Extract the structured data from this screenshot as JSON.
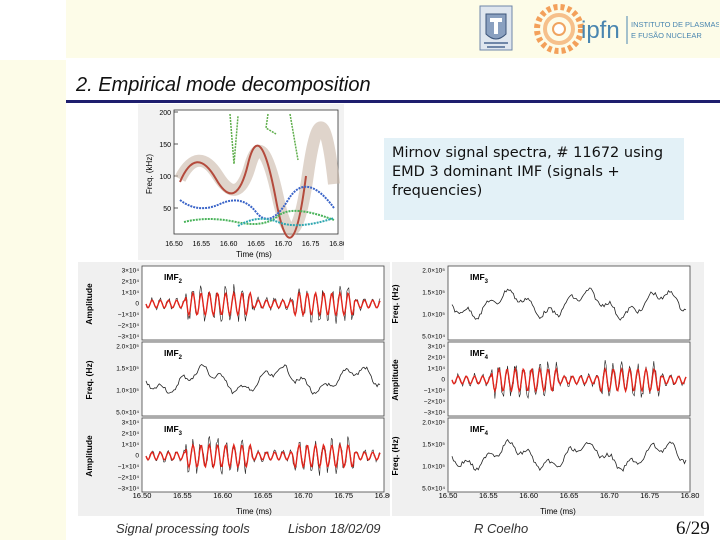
{
  "slide": {
    "title": "2. Empirical mode decomposition",
    "caption": "Mirnov signal spectra, # 11672 using EMD 3 dominant IMF (signals + frequencies)",
    "page_number": "6/29"
  },
  "footer": {
    "left": "Signal processing tools",
    "center": "Lisbon 18/02/09",
    "right": "R Coelho"
  },
  "logos": {
    "ist_name": "ist-logo",
    "ipfn_text": "ipfn",
    "ipfn_subtitle_1": "INSTITUTO DE PLASMAS",
    "ipfn_subtitle_2": "E FUSÃO NUCLEAR"
  },
  "spectrogram": {
    "ylabel": "Freq. (kHz)",
    "xlabel": "Time (ms)",
    "yticks": [
      "200",
      "150",
      "100",
      "50"
    ],
    "xticks": [
      "16.50",
      "16.55",
      "16.60",
      "16.65",
      "16.70",
      "16.75",
      "16.80"
    ]
  },
  "left_panels": {
    "xlabel": "Time (ms)",
    "xticks": [
      "16.50",
      "16.55",
      "16.60",
      "16.65",
      "16.70",
      "16.75",
      "16.80"
    ],
    "panels": [
      {
        "label": "IMF",
        "sub": "2",
        "ylabel": "Amplitude",
        "yticks": [
          "3×10⁴",
          "2×10⁴",
          "1×10⁴",
          "0",
          "−1×10⁴",
          "−2×10⁴",
          "−3×10⁴"
        ]
      },
      {
        "label": "IMF",
        "sub": "2",
        "ylabel": "Freq. (Hz)",
        "yticks": [
          "2.0×10⁵",
          "1.5×10⁵",
          "1.0×10⁵",
          "5.0×10⁴"
        ]
      },
      {
        "label": "IMF",
        "sub": "3",
        "ylabel": "Amplitude",
        "yticks": [
          "3×10⁴",
          "2×10⁴",
          "1×10⁴",
          "0",
          "−1×10⁴",
          "−2×10⁴",
          "−3×10⁴"
        ]
      }
    ]
  },
  "right_panels": {
    "xlabel": "Time (ms)",
    "xticks": [
      "16.50",
      "16.55",
      "16.60",
      "16.65",
      "16.70",
      "16.75",
      "16.80"
    ],
    "panels": [
      {
        "label": "IMF",
        "sub": "3",
        "ylabel": "Freq. (Hz)",
        "yticks": [
          "2.0×10⁵",
          "1.5×10⁵",
          "1.0×10⁵",
          "5.0×10⁴"
        ]
      },
      {
        "label": "IMF",
        "sub": "4",
        "ylabel": "Amplitude",
        "yticks": [
          "3×10⁴",
          "2×10⁴",
          "1×10⁴",
          "0",
          "−1×10⁴",
          "−2×10⁴",
          "−3×10⁴"
        ]
      },
      {
        "label": "IMF",
        "sub": "4",
        "ylabel": "Freq. (Hz)",
        "yticks": [
          "2.0×10⁵",
          "1.5×10⁵",
          "1.0×10⁵",
          "5.0×10⁴"
        ]
      }
    ]
  },
  "colors": {
    "title_rule": "#1e1e6e",
    "caption_bg": "#e3f1f7",
    "signal_red": "#e0241b",
    "signal_black": "#222222",
    "sidebar": "#fdfce8"
  }
}
